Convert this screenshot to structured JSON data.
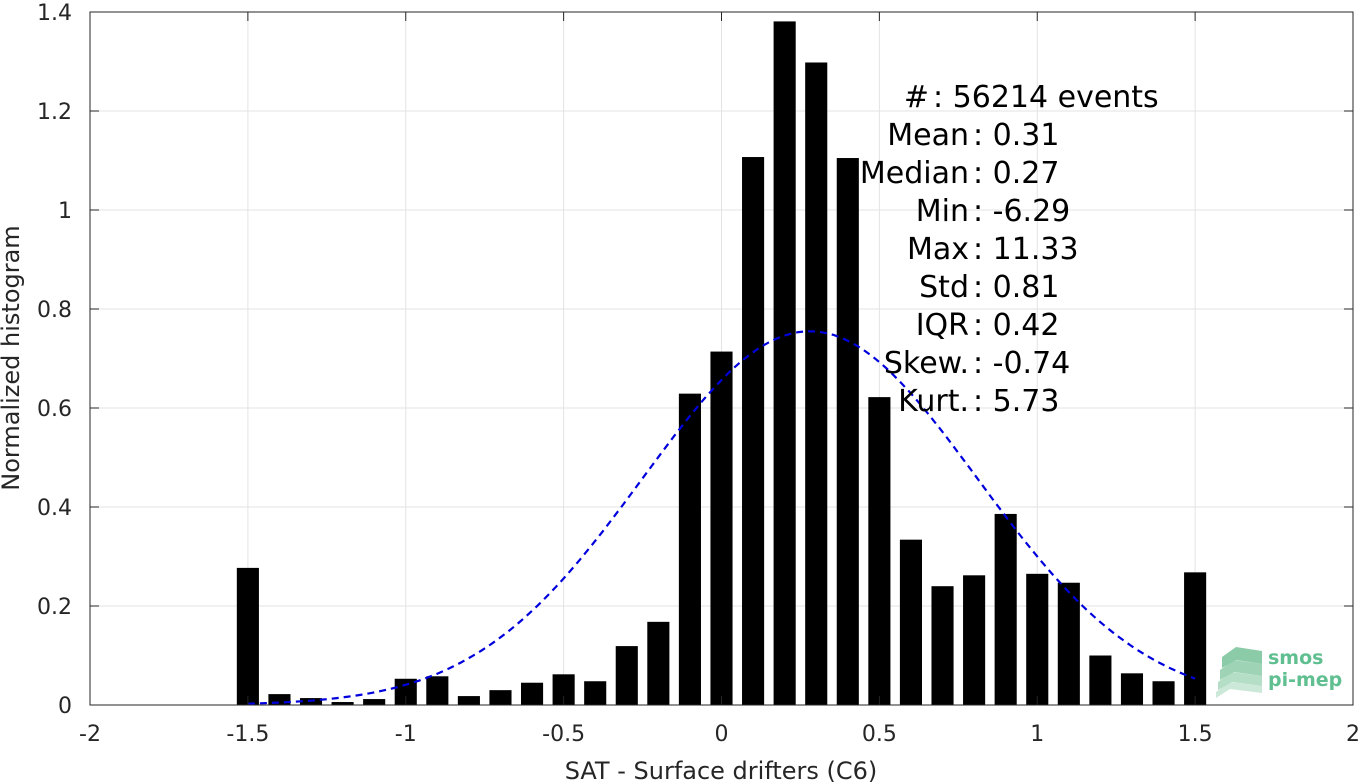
{
  "chart_data": {
    "type": "bar",
    "xlabel": "SAT - Surface drifters (C6)",
    "ylabel": "Normalized histogram",
    "xlim": [
      -2,
      2
    ],
    "ylim": [
      0,
      1.4
    ],
    "xticks": [
      -2,
      -1.5,
      -1,
      -0.5,
      0,
      0.5,
      1,
      1.5,
      2
    ],
    "xtick_labels": [
      "-2",
      "-1.5",
      "-1",
      "-0.5",
      "0",
      "0.5",
      "1",
      "1.5",
      "2"
    ],
    "yticks": [
      0,
      0.2,
      0.4,
      0.6,
      0.8,
      1,
      1.2,
      1.4
    ],
    "ytick_labels": [
      "0",
      "0.2",
      "0.4",
      "0.6",
      "0.8",
      "1",
      "1.2",
      "1.4"
    ],
    "grid": true,
    "bar_width": 0.07,
    "bar_color": "#000000",
    "series": [
      {
        "x": [
          -1.5,
          -1.4,
          -1.3,
          -1.2,
          -1.1,
          -1.0,
          -0.9,
          -0.8,
          -0.7,
          -0.6,
          -0.5,
          -0.4,
          -0.3,
          -0.2,
          -0.1,
          0.0,
          0.1,
          0.2,
          0.3,
          0.4,
          0.5,
          0.6,
          0.7,
          0.8,
          0.9,
          1.0,
          1.1,
          1.2,
          1.3,
          1.4,
          1.5
        ],
        "values": [
          0.277,
          0.022,
          0.014,
          0.006,
          0.012,
          0.053,
          0.058,
          0.018,
          0.03,
          0.045,
          0.062,
          0.048,
          0.119,
          0.168,
          0.629,
          0.714,
          1.107,
          1.381,
          1.298,
          1.105,
          0.622,
          0.334,
          0.24,
          0.262,
          0.386,
          0.265,
          0.247,
          0.1,
          0.064,
          0.048,
          0.268
        ]
      }
    ],
    "fit_curve": {
      "style": "dashed",
      "color": "#0000dd",
      "mean": 0.28,
      "std": 0.53,
      "peak": 0.755,
      "x_range": [
        -1.5,
        1.5
      ]
    },
    "annotations": [
      {
        "label": "#  ",
        "value": ": 56214 events"
      },
      {
        "label": "Mean ",
        "value": ": 0.31"
      },
      {
        "label": "Median ",
        "value": ": 0.27"
      },
      {
        "label": "Min ",
        "value": ": -6.29"
      },
      {
        "label": "Max ",
        "value": ": 11.33"
      },
      {
        "label": "Std ",
        "value": ": 0.81"
      },
      {
        "label": "IQR ",
        "value": ": 0.42"
      },
      {
        "label": "Skew. ",
        "value": ": -0.74"
      },
      {
        "label": "Kurt. ",
        "value": ": 5.73"
      }
    ]
  },
  "logo": {
    "line1": "smos",
    "line2": "pi-mep",
    "color": "#5fbf90"
  }
}
